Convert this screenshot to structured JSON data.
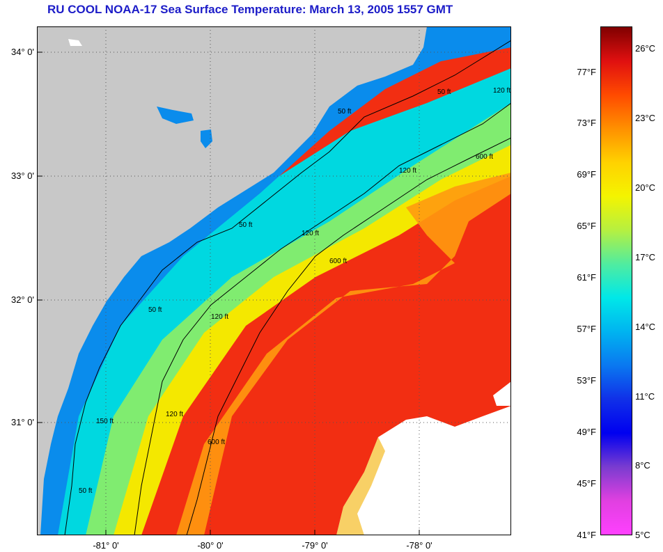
{
  "title": "RU COOL  NOAA-17  Sea Surface Temperature:  March 13, 2005 1557 GMT",
  "map": {
    "latitude_labels": [
      "34° 0'",
      "33° 0'",
      "32° 0'",
      "31° 0'"
    ],
    "longitude_labels": [
      "-81° 0'",
      "-80° 0'",
      "-79° 0'",
      "-78° 0'"
    ],
    "isobath_labels": [
      "50 ft",
      "50 ft",
      "50 ft",
      "50 ft",
      "120 ft",
      "120 ft",
      "120 ft",
      "120 ft",
      "120 ft",
      "600 ft",
      "600 ft",
      "600 ft",
      "150 ft",
      "50 ft"
    ],
    "colors": {
      "land": "#c8c8c8",
      "cloud": "#ffffff",
      "gridlines": "#555555",
      "contours": "#000000"
    }
  },
  "colorbar": {
    "fahrenheit_labels": [
      "77°F",
      "73°F",
      "69°F",
      "65°F",
      "61°F",
      "57°F",
      "53°F",
      "49°F",
      "45°F",
      "41°F"
    ],
    "celsius_labels": [
      "26°C",
      "23°C",
      "20°C",
      "17°C",
      "14°C",
      "11°C",
      "8°C",
      "5°C"
    ],
    "range_celsius": [
      5,
      28
    ],
    "range_fahrenheit": [
      41,
      82.4
    ],
    "gradient_colors_top_to_bottom": [
      "#800000",
      "#e01010",
      "#ff4a00",
      "#ff9000",
      "#ffd200",
      "#f4f400",
      "#b6f040",
      "#50eca0",
      "#00e8e8",
      "#00b4f0",
      "#0a78f0",
      "#1030e8",
      "#0000f0",
      "#7a3cd0",
      "#e040e0",
      "#ff40ff"
    ]
  }
}
